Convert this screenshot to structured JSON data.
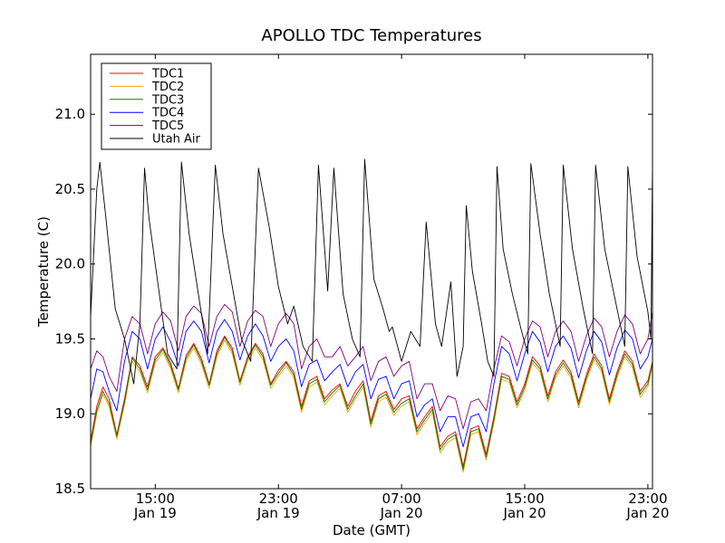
{
  "chart_data": {
    "type": "line",
    "title": "APOLLO TDC Temperatures",
    "xlabel": "Date (GMT)",
    "ylabel": "Temperature (C)",
    "x_unit": "hours since Jan 19 00:00 GMT",
    "xlim": [
      10.8,
      47.3
    ],
    "ylim": [
      18.5,
      21.4
    ],
    "yticks": [
      {
        "value": 18.5,
        "label": "18.5"
      },
      {
        "value": 19.0,
        "label": "19.0"
      },
      {
        "value": 19.5,
        "label": "19.5"
      },
      {
        "value": 20.0,
        "label": "20.0"
      },
      {
        "value": 20.5,
        "label": "20.5"
      },
      {
        "value": 21.0,
        "label": "21.0"
      }
    ],
    "xticks": [
      {
        "value": 15,
        "time": "15:00",
        "date": "Jan 19"
      },
      {
        "value": 23,
        "time": "23:00",
        "date": "Jan 19"
      },
      {
        "value": 31,
        "time": "07:00",
        "date": "Jan 20"
      },
      {
        "value": 39,
        "time": "15:00",
        "date": "Jan 20"
      },
      {
        "value": 47,
        "time": "23:00",
        "date": "Jan 20"
      }
    ],
    "legend_position": "top-left",
    "series": [
      {
        "name": "TDC1",
        "color": "#ff0000",
        "x": [
          10.8,
          11.2,
          11.6,
          12.0,
          12.5,
          13.0,
          13.5,
          14.0,
          14.5,
          15.0,
          15.5,
          16.0,
          16.5,
          17.0,
          17.5,
          18.0,
          18.5,
          19.0,
          19.5,
          20.0,
          20.5,
          21.0,
          21.5,
          22.0,
          22.5,
          23.0,
          23.5,
          24.0,
          24.5,
          25.0,
          25.5,
          26.0,
          26.5,
          27.0,
          27.5,
          28.0,
          28.5,
          29.0,
          29.5,
          30.0,
          30.5,
          31.0,
          31.5,
          32.0,
          32.5,
          33.0,
          33.5,
          34.0,
          34.5,
          35.0,
          35.5,
          36.0,
          36.5,
          37.0,
          37.5,
          38.0,
          38.5,
          39.0,
          39.5,
          40.0,
          40.5,
          41.0,
          41.5,
          42.0,
          42.5,
          43.0,
          43.5,
          44.0,
          44.5,
          45.0,
          45.5,
          46.0,
          46.5,
          47.0,
          47.3
        ],
        "y": [
          18.82,
          19.05,
          19.18,
          19.1,
          18.86,
          19.1,
          19.38,
          19.32,
          19.18,
          19.38,
          19.44,
          19.34,
          19.17,
          19.39,
          19.47,
          19.37,
          19.2,
          19.42,
          19.52,
          19.44,
          19.22,
          19.38,
          19.47,
          19.4,
          19.2,
          19.29,
          19.35,
          19.28,
          19.05,
          19.22,
          19.25,
          19.1,
          19.16,
          19.2,
          19.05,
          19.15,
          19.22,
          18.95,
          19.12,
          19.15,
          19.03,
          19.1,
          19.12,
          18.9,
          18.98,
          19.05,
          18.78,
          18.85,
          18.88,
          18.65,
          18.9,
          18.92,
          18.73,
          18.98,
          19.27,
          19.25,
          19.08,
          19.2,
          19.38,
          19.32,
          19.12,
          19.28,
          19.36,
          19.28,
          19.08,
          19.26,
          19.4,
          19.32,
          19.1,
          19.28,
          19.42,
          19.35,
          19.15,
          19.22,
          19.35
        ]
      },
      {
        "name": "TDC2",
        "color": "#ffa500",
        "x": [
          10.8,
          11.2,
          11.6,
          12.0,
          12.5,
          13.0,
          13.5,
          14.0,
          14.5,
          15.0,
          15.5,
          16.0,
          16.5,
          17.0,
          17.5,
          18.0,
          18.5,
          19.0,
          19.5,
          20.0,
          20.5,
          21.0,
          21.5,
          22.0,
          22.5,
          23.0,
          23.5,
          24.0,
          24.5,
          25.0,
          25.5,
          26.0,
          26.5,
          27.0,
          27.5,
          28.0,
          28.5,
          29.0,
          29.5,
          30.0,
          30.5,
          31.0,
          31.5,
          32.0,
          32.5,
          33.0,
          33.5,
          34.0,
          34.5,
          35.0,
          35.5,
          36.0,
          36.5,
          37.0,
          37.5,
          38.0,
          38.5,
          39.0,
          39.5,
          40.0,
          40.5,
          41.0,
          41.5,
          42.0,
          42.5,
          43.0,
          43.5,
          44.0,
          44.5,
          45.0,
          45.5,
          46.0,
          46.5,
          47.0,
          47.3
        ],
        "y": [
          18.78,
          19.0,
          19.13,
          19.05,
          18.83,
          19.06,
          19.35,
          19.28,
          19.14,
          19.34,
          19.41,
          19.3,
          19.14,
          19.35,
          19.44,
          19.33,
          19.17,
          19.38,
          19.49,
          19.4,
          19.19,
          19.35,
          19.44,
          19.36,
          19.17,
          19.25,
          19.32,
          19.24,
          19.01,
          19.18,
          19.21,
          19.06,
          19.12,
          19.17,
          19.01,
          19.1,
          19.18,
          18.91,
          19.08,
          19.11,
          18.99,
          19.05,
          19.08,
          18.86,
          18.94,
          19.01,
          18.74,
          18.81,
          18.84,
          18.61,
          18.86,
          18.88,
          18.69,
          18.94,
          19.23,
          19.21,
          19.04,
          19.16,
          19.34,
          19.28,
          19.08,
          19.24,
          19.32,
          19.24,
          19.04,
          19.22,
          19.36,
          19.28,
          19.06,
          19.24,
          19.38,
          19.31,
          19.11,
          19.18,
          19.32
        ]
      },
      {
        "name": "TDC3",
        "color": "#008000",
        "x": [
          10.8,
          11.2,
          11.6,
          12.0,
          12.5,
          13.0,
          13.5,
          14.0,
          14.5,
          15.0,
          15.5,
          16.0,
          16.5,
          17.0,
          17.5,
          18.0,
          18.5,
          19.0,
          19.5,
          20.0,
          20.5,
          21.0,
          21.5,
          22.0,
          22.5,
          23.0,
          23.5,
          24.0,
          24.5,
          25.0,
          25.5,
          26.0,
          26.5,
          27.0,
          27.5,
          28.0,
          28.5,
          29.0,
          29.5,
          30.0,
          30.5,
          31.0,
          31.5,
          32.0,
          32.5,
          33.0,
          33.5,
          34.0,
          34.5,
          35.0,
          35.5,
          36.0,
          36.5,
          37.0,
          37.5,
          38.0,
          38.5,
          39.0,
          39.5,
          40.0,
          40.5,
          41.0,
          41.5,
          42.0,
          42.5,
          43.0,
          43.5,
          44.0,
          44.5,
          45.0,
          45.5,
          46.0,
          46.5,
          47.0,
          47.3
        ],
        "y": [
          18.8,
          19.02,
          19.15,
          19.07,
          18.85,
          19.08,
          19.37,
          19.3,
          19.16,
          19.36,
          19.43,
          19.32,
          19.16,
          19.37,
          19.46,
          19.35,
          19.19,
          19.4,
          19.51,
          19.42,
          19.21,
          19.37,
          19.46,
          19.38,
          19.19,
          19.27,
          19.34,
          19.26,
          19.03,
          19.2,
          19.23,
          19.08,
          19.14,
          19.19,
          19.03,
          19.12,
          19.2,
          18.93,
          19.1,
          19.13,
          19.01,
          19.07,
          19.1,
          18.88,
          18.96,
          19.03,
          18.76,
          18.83,
          18.86,
          18.63,
          18.88,
          18.9,
          18.71,
          18.96,
          19.25,
          19.23,
          19.06,
          19.18,
          19.36,
          19.3,
          19.1,
          19.26,
          19.34,
          19.26,
          19.06,
          19.24,
          19.38,
          19.3,
          19.08,
          19.26,
          19.4,
          19.33,
          19.13,
          19.2,
          19.34
        ]
      },
      {
        "name": "TDC4",
        "color": "#0000ff",
        "x": [
          10.8,
          11.2,
          11.6,
          12.0,
          12.5,
          13.0,
          13.5,
          14.0,
          14.5,
          15.0,
          15.5,
          16.0,
          16.5,
          17.0,
          17.5,
          18.0,
          18.5,
          19.0,
          19.5,
          20.0,
          20.5,
          21.0,
          21.5,
          22.0,
          22.5,
          23.0,
          23.5,
          24.0,
          24.5,
          25.0,
          25.5,
          26.0,
          26.5,
          27.0,
          27.5,
          28.0,
          28.5,
          29.0,
          29.5,
          30.0,
          30.5,
          31.0,
          31.5,
          32.0,
          32.5,
          33.0,
          33.5,
          34.0,
          34.5,
          35.0,
          35.5,
          36.0,
          36.5,
          37.0,
          37.5,
          38.0,
          38.5,
          39.0,
          39.5,
          40.0,
          40.5,
          41.0,
          41.5,
          42.0,
          42.5,
          43.0,
          43.5,
          44.0,
          44.5,
          45.0,
          45.5,
          46.0,
          46.5,
          47.0,
          47.3
        ],
        "y": [
          19.1,
          19.3,
          19.28,
          19.15,
          19.02,
          19.35,
          19.55,
          19.5,
          19.3,
          19.5,
          19.58,
          19.48,
          19.32,
          19.55,
          19.62,
          19.55,
          19.34,
          19.55,
          19.63,
          19.55,
          19.36,
          19.52,
          19.6,
          19.52,
          19.35,
          19.45,
          19.5,
          19.42,
          19.18,
          19.33,
          19.36,
          19.22,
          19.28,
          19.33,
          19.18,
          19.28,
          19.33,
          19.1,
          19.23,
          19.25,
          19.1,
          19.2,
          19.22,
          18.98,
          19.06,
          19.1,
          18.88,
          18.98,
          18.98,
          18.78,
          18.98,
          19.0,
          18.88,
          19.2,
          19.45,
          19.4,
          19.22,
          19.4,
          19.55,
          19.48,
          19.28,
          19.45,
          19.52,
          19.44,
          19.24,
          19.42,
          19.55,
          19.48,
          19.26,
          19.44,
          19.56,
          19.5,
          19.3,
          19.38,
          19.5
        ]
      },
      {
        "name": "TDC5",
        "color": "#800080",
        "x": [
          10.8,
          11.2,
          11.6,
          12.0,
          12.5,
          13.0,
          13.5,
          14.0,
          14.5,
          15.0,
          15.5,
          16.0,
          16.5,
          17.0,
          17.5,
          18.0,
          18.5,
          19.0,
          19.5,
          20.0,
          20.5,
          21.0,
          21.5,
          22.0,
          22.5,
          23.0,
          23.5,
          24.0,
          24.5,
          25.0,
          25.5,
          26.0,
          26.5,
          27.0,
          27.5,
          28.0,
          28.5,
          29.0,
          29.5,
          30.0,
          30.5,
          31.0,
          31.5,
          32.0,
          32.5,
          33.0,
          33.5,
          34.0,
          34.5,
          35.0,
          35.5,
          36.0,
          36.5,
          37.0,
          37.5,
          38.0,
          38.5,
          39.0,
          39.5,
          40.0,
          40.5,
          41.0,
          41.5,
          42.0,
          42.5,
          43.0,
          43.5,
          44.0,
          44.5,
          45.0,
          45.5,
          46.0,
          46.5,
          47.0,
          47.3
        ],
        "y": [
          19.3,
          19.42,
          19.38,
          19.25,
          19.15,
          19.5,
          19.65,
          19.6,
          19.4,
          19.6,
          19.68,
          19.62,
          19.42,
          19.65,
          19.72,
          19.67,
          19.45,
          19.65,
          19.73,
          19.68,
          19.45,
          19.62,
          19.69,
          19.65,
          19.45,
          19.6,
          19.67,
          19.6,
          19.3,
          19.45,
          19.5,
          19.38,
          19.38,
          19.45,
          19.32,
          19.38,
          19.45,
          19.22,
          19.35,
          19.38,
          19.25,
          19.32,
          19.35,
          19.1,
          19.2,
          19.2,
          19.02,
          19.12,
          19.1,
          18.9,
          19.08,
          19.1,
          19.02,
          19.3,
          19.52,
          19.48,
          19.32,
          19.5,
          19.62,
          19.58,
          19.38,
          19.55,
          19.62,
          19.55,
          19.35,
          19.52,
          19.64,
          19.58,
          19.38,
          19.55,
          19.66,
          19.6,
          19.4,
          19.5,
          19.68
        ]
      },
      {
        "name": "Utah Air",
        "color": "#000000",
        "x": [
          10.8,
          11.2,
          11.4,
          11.8,
          12.4,
          13.0,
          13.6,
          14.0,
          14.3,
          14.6,
          15.2,
          15.8,
          16.4,
          16.7,
          17.2,
          17.8,
          18.4,
          18.9,
          19.4,
          20.0,
          20.6,
          21.2,
          21.7,
          22.4,
          23.0,
          23.6,
          24.0,
          24.6,
          25.2,
          25.6,
          26.2,
          26.6,
          27.2,
          27.8,
          28.3,
          28.6,
          29.2,
          29.8,
          30.2,
          30.4,
          31.0,
          31.6,
          32.2,
          32.6,
          33.2,
          33.6,
          34.2,
          34.6,
          35.0,
          35.2,
          35.6,
          36.2,
          36.6,
          37.0,
          37.2,
          37.6,
          38.2,
          38.8,
          39.2,
          39.4,
          40.0,
          40.6,
          41.3,
          41.5,
          42.1,
          42.8,
          43.4,
          43.6,
          44.2,
          44.8,
          45.5,
          45.7,
          46.3,
          47.0,
          47.2,
          47.3
        ],
        "y": [
          19.65,
          20.5,
          20.68,
          20.3,
          19.7,
          19.5,
          19.2,
          19.6,
          20.64,
          20.3,
          19.85,
          19.4,
          19.3,
          20.68,
          20.2,
          19.8,
          19.4,
          20.66,
          20.2,
          19.85,
          19.5,
          19.35,
          20.64,
          20.25,
          19.85,
          19.6,
          19.72,
          19.45,
          19.35,
          20.66,
          19.82,
          20.64,
          19.8,
          19.5,
          19.38,
          20.7,
          19.9,
          19.7,
          19.55,
          19.58,
          19.35,
          19.55,
          19.45,
          20.28,
          19.6,
          19.45,
          19.88,
          19.25,
          19.45,
          20.39,
          19.95,
          19.6,
          19.35,
          19.25,
          20.65,
          20.1,
          19.8,
          19.55,
          19.4,
          20.67,
          20.2,
          19.8,
          19.45,
          20.66,
          20.1,
          19.7,
          19.4,
          20.66,
          20.1,
          19.8,
          19.45,
          20.65,
          20.05,
          19.68,
          19.5,
          20.67
        ]
      }
    ]
  }
}
